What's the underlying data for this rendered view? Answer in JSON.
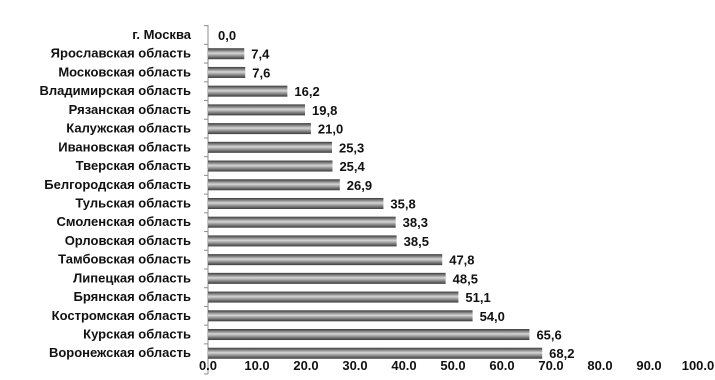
{
  "chart_data": {
    "type": "bar",
    "orientation": "horizontal",
    "title": "",
    "xlabel": "",
    "ylabel": "",
    "categories": [
      "г. Москва",
      "Ярославская область",
      "Московская область",
      "Владимирская область",
      "Рязанская область",
      "Калужская область",
      "Ивановская область",
      "Тверская область",
      "Белгородская область",
      "Тульская область",
      "Смоленская область",
      "Орловская область",
      "Тамбовская область",
      "Липецкая область",
      "Брянская область",
      "Костромская область",
      "Курская область",
      "Воронежская область"
    ],
    "values": [
      0.0,
      7.4,
      7.6,
      16.2,
      19.8,
      21.0,
      25.3,
      25.4,
      26.9,
      35.8,
      38.3,
      38.5,
      47.8,
      48.5,
      51.1,
      54.0,
      65.6,
      68.2
    ],
    "value_labels": [
      "0,0",
      "7,4",
      "7,6",
      "16,2",
      "19,8",
      "21,0",
      "25,3",
      "25,4",
      "26,9",
      "35,8",
      "38,3",
      "38,5",
      "47,8",
      "48,5",
      "51,1",
      "54,0",
      "65,6",
      "68,2"
    ],
    "xlim": [
      0,
      100
    ],
    "x_ticks": [
      "0.0",
      "10.0",
      "20.0",
      "30.0",
      "40.0",
      "50.0",
      "60.0",
      "70.0",
      "80.0",
      "90.0",
      "100.0"
    ],
    "grid": false,
    "legend": "none",
    "colors": {
      "bar_dark": "#3a3a3a",
      "bar_light": "#d6d6d6",
      "axis": "#8c8c8c",
      "text": "#111111"
    }
  }
}
